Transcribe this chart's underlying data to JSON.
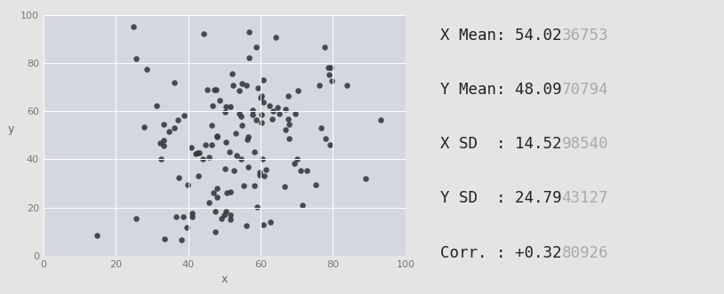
{
  "plot_bg_color": "#d3d8e0",
  "fig_bg_color": "#e4e4e4",
  "dot_color": "#3a3a3a",
  "dot_size": 22,
  "dot_alpha": 0.9,
  "xlim": [
    0,
    100
  ],
  "ylim": [
    0,
    100
  ],
  "xlabel": "x",
  "ylabel": "y",
  "xticks": [
    0,
    20,
    40,
    60,
    80,
    100
  ],
  "yticks": [
    0,
    20,
    40,
    60,
    80,
    100
  ],
  "stats_lines": [
    {
      "label": "X Mean: ",
      "dark": "54.02",
      "light": "36753"
    },
    {
      "label": "Y Mean: ",
      "dark": "48.09",
      "light": "70794"
    },
    {
      "label": "X SD  : ",
      "dark": "14.52",
      "light": "98540"
    },
    {
      "label": "Y SD  : ",
      "dark": "24.79",
      "light": "43127"
    },
    {
      "label": "Corr. : ",
      "dark": "+0.32",
      "light": "80926"
    }
  ],
  "label_color_dark": "#222222",
  "label_color_light": "#aaaaaa",
  "seed": 42,
  "n_points": 142,
  "x_mean": 54.0236753,
  "y_mean": 48.0970794,
  "x_sd": 14.529854,
  "y_sd": 24.7943127,
  "corr": 0.3280926
}
